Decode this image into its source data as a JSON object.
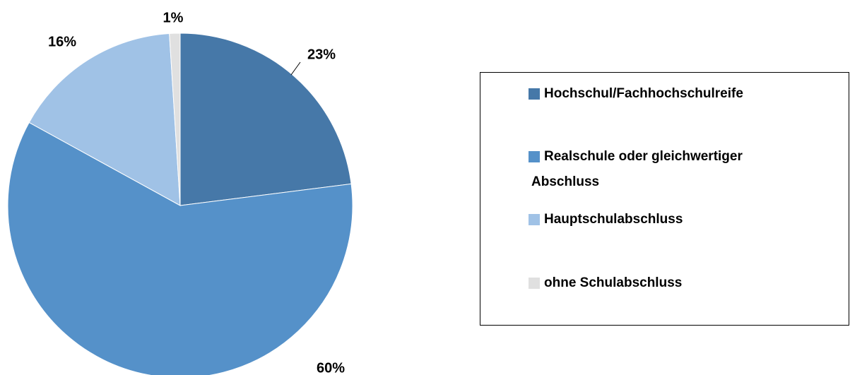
{
  "chart_data": {
    "type": "pie",
    "categories": [
      "Hochschul/Fachhochschulreife",
      "Realschule oder gleichwertiger Abschluss",
      "Hauptschulabschluss",
      "ohne Schulabschluss"
    ],
    "values": [
      23,
      60,
      16,
      1
    ],
    "value_labels": [
      "23%",
      "60%",
      "16%",
      "1%"
    ],
    "colors": [
      "#4678a8",
      "#5591c9",
      "#a0c2e6",
      "#e0e0e0"
    ],
    "legend": "right"
  }
}
